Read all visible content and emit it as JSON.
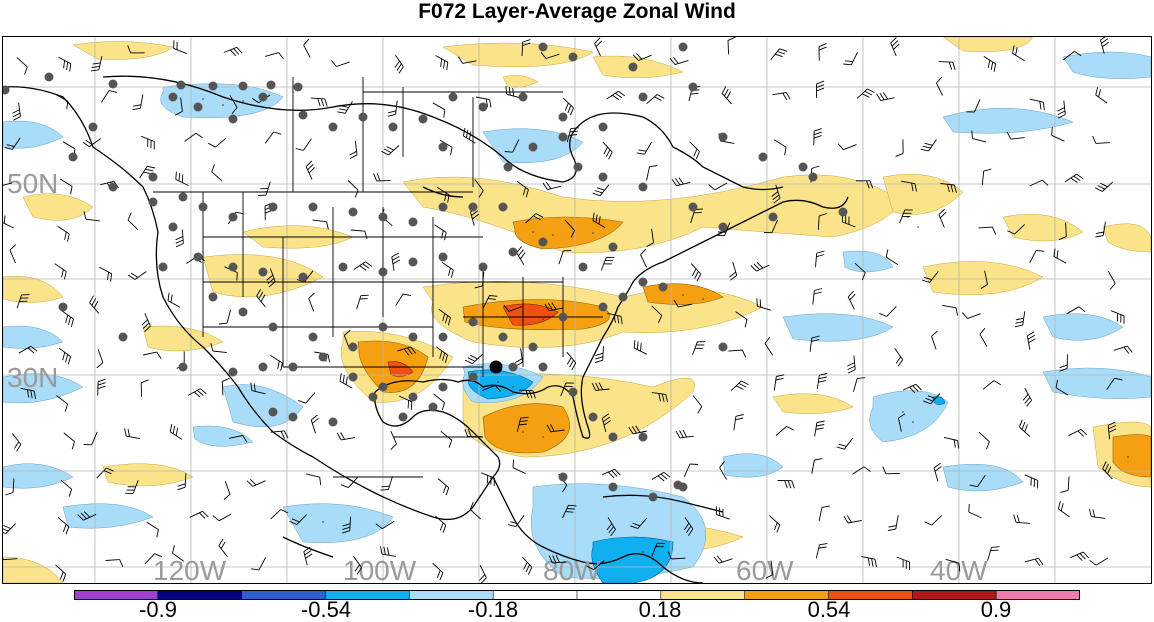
{
  "title": "F072 Layer-Average Zonal Wind",
  "map": {
    "lat_labels": [
      "50N",
      "30N"
    ],
    "lon_labels": [
      "120W",
      "100W",
      "80W",
      "60W",
      "40W"
    ],
    "label_color": "#9a9a9a",
    "grid_color": "#b5b5b5",
    "station_marker_color": "#555555"
  },
  "colorbar": {
    "colors": [
      "#a040d0",
      "#000080",
      "#3060d0",
      "#10b0f0",
      "#a8dcf8",
      "#ffffff",
      "#ffffff",
      "#fbe38a",
      "#f5a010",
      "#f05010",
      "#b01818",
      "#f07ab0"
    ],
    "tick_labels": [
      "-0.9",
      "-0.54",
      "-0.18",
      "0.18",
      "0.54",
      "0.9"
    ]
  }
}
